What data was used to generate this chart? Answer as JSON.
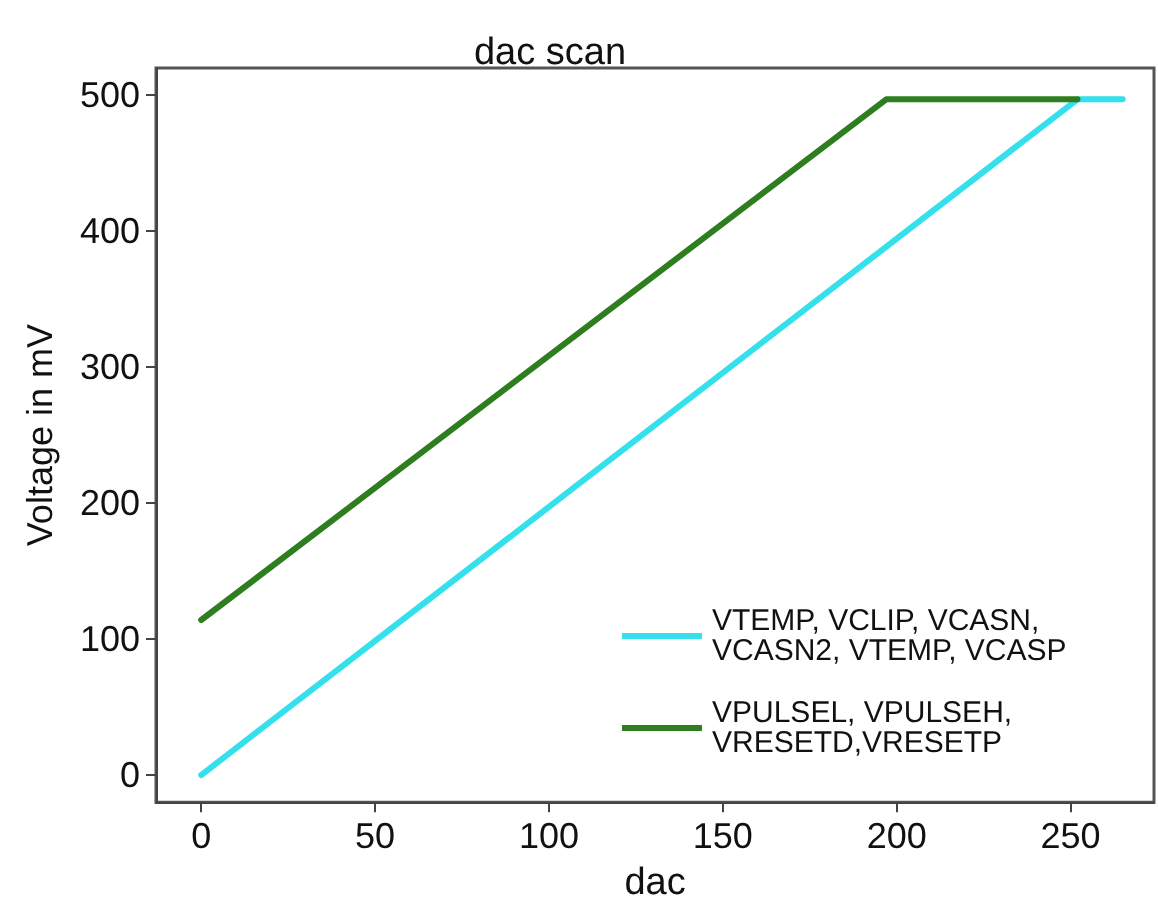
{
  "chart_data": {
    "type": "line",
    "title": "dac scan",
    "xlabel": "dac",
    "ylabel": "Voltage in mV",
    "series": [
      {
        "name": "VTEMP, VCLIP, VCASN, VCASN2, VTEMP, VCASP",
        "color": "#33e0eb",
        "x": [
          0,
          252,
          265
        ],
        "values": [
          0,
          497,
          497
        ]
      },
      {
        "name": "VPULSEL, VPULSEH, VRESETD,VRESETP",
        "color": "#2e7d1e",
        "x": [
          0,
          197,
          252
        ],
        "values": [
          114,
          497,
          497
        ]
      }
    ],
    "xlim": [
      -13,
      274
    ],
    "xticks": [
      0,
      50,
      100,
      150,
      200,
      250
    ],
    "ylim": [
      -20,
      520
    ],
    "yticks": [
      0,
      100,
      200,
      300,
      400,
      500
    ],
    "grid": false,
    "legend": "bottom right",
    "marker": "none",
    "line_style": "solid"
  }
}
